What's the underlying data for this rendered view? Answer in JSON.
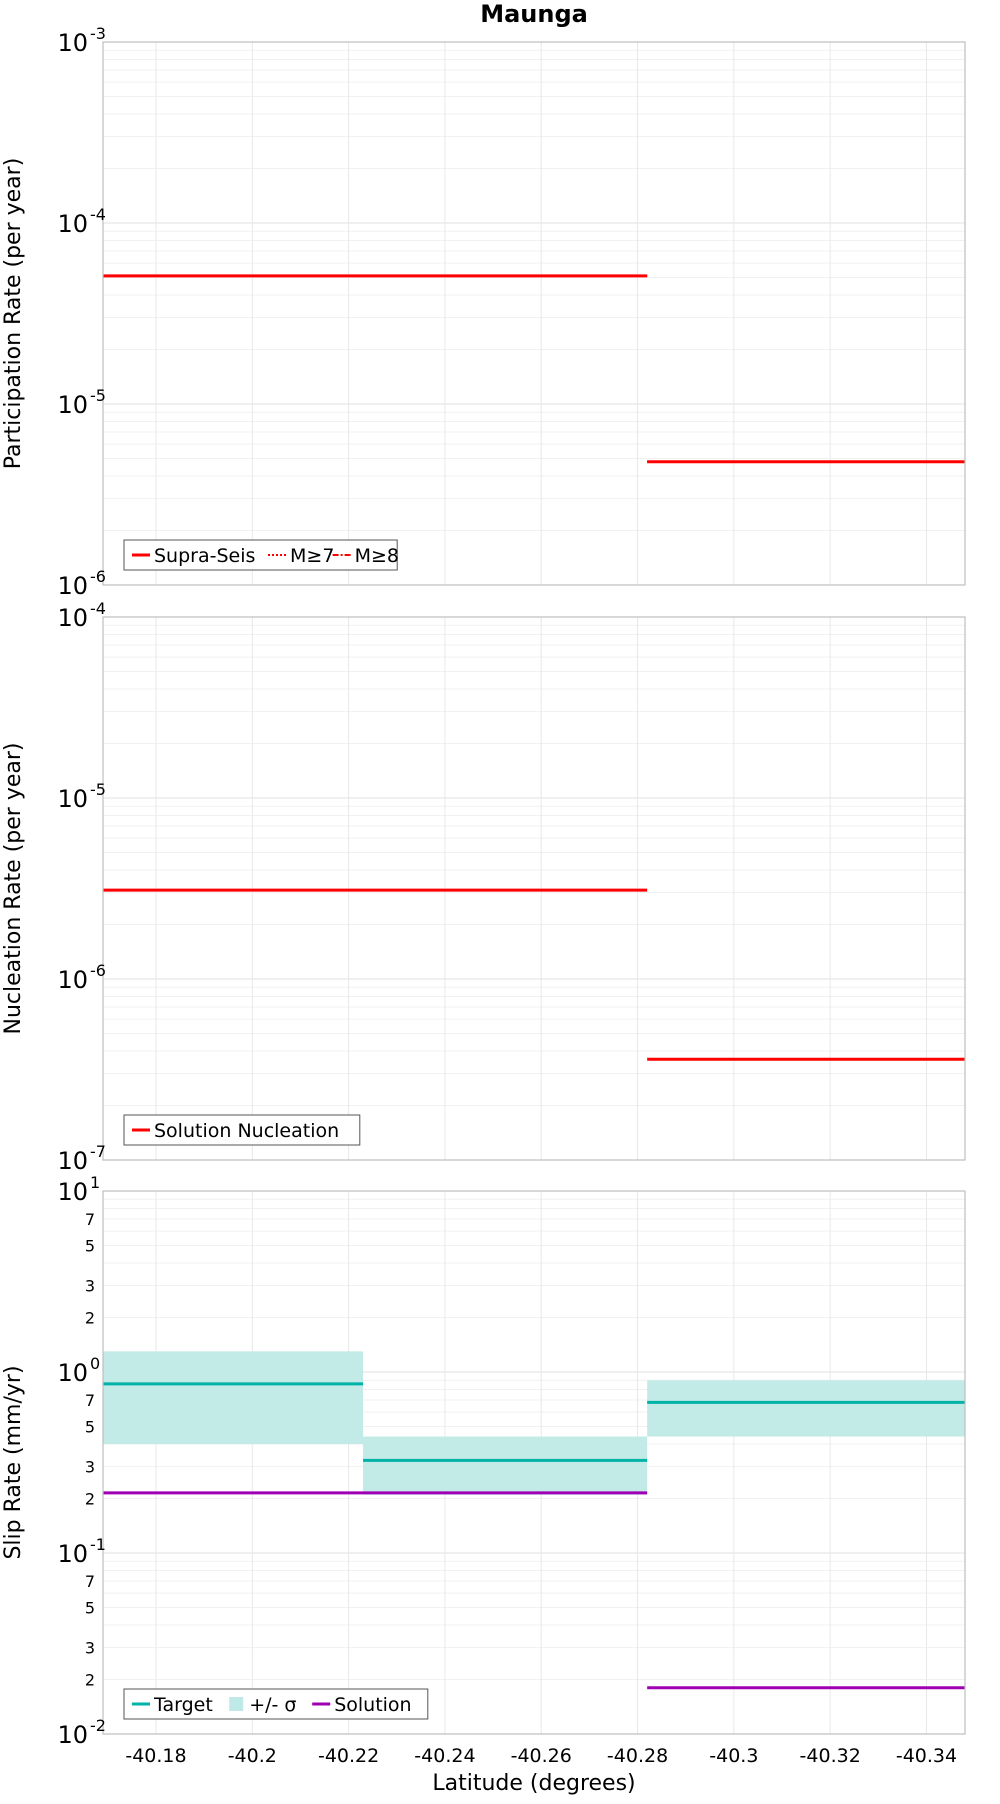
{
  "chart_data": [
    {
      "type": "line",
      "title": "Maunga",
      "xlabel": "",
      "ylabel": "Participation Rate (per year)",
      "y_scale": "log",
      "ylim": [
        1e-06,
        0.001
      ],
      "xlim": [
        -40.169,
        -40.348
      ],
      "x_axis": "reversed",
      "grid": true,
      "legend_position": "bottom-left",
      "y_tick_labels": [
        {
          "value": 0.001,
          "base": "10",
          "exp": "-3"
        },
        {
          "value": 0.0001,
          "base": "10",
          "exp": "-4"
        },
        {
          "value": 1e-05,
          "base": "10",
          "exp": "-5"
        },
        {
          "value": 1e-06,
          "base": "10",
          "exp": "-6"
        }
      ],
      "series": [
        {
          "name": "Supra-Seis",
          "color": "#ff0000",
          "style": "solid",
          "segments": [
            {
              "x": [
                -40.169,
                -40.282
              ],
              "y": 5.1e-05
            },
            {
              "x": [
                -40.282,
                -40.348
              ],
              "y": 4.8e-06
            }
          ]
        },
        {
          "name": "M≥7",
          "color": "#ff0000",
          "style": "dotted",
          "segments": [
            {
              "x": [
                -40.169,
                -40.282
              ],
              "y": 5.1e-05
            },
            {
              "x": [
                -40.282,
                -40.348
              ],
              "y": 4.8e-06
            }
          ]
        },
        {
          "name": "M≥8",
          "color": "#ff0000",
          "style": "dashdot",
          "segments": []
        }
      ]
    },
    {
      "type": "line",
      "title": "",
      "xlabel": "",
      "ylabel": "Nucleation Rate (per year)",
      "y_scale": "log",
      "ylim": [
        1e-07,
        0.0001
      ],
      "xlim": [
        -40.169,
        -40.348
      ],
      "x_axis": "reversed",
      "grid": true,
      "legend_position": "bottom-left",
      "y_tick_labels": [
        {
          "value": 0.0001,
          "base": "10",
          "exp": "-4"
        },
        {
          "value": 1e-05,
          "base": "10",
          "exp": "-5"
        },
        {
          "value": 1e-06,
          "base": "10",
          "exp": "-6"
        },
        {
          "value": 1e-07,
          "base": "10",
          "exp": "-7"
        }
      ],
      "series": [
        {
          "name": "Solution Nucleation",
          "color": "#ff0000",
          "style": "solid",
          "segments": [
            {
              "x": [
                -40.169,
                -40.282
              ],
              "y": 3.1e-06
            },
            {
              "x": [
                -40.282,
                -40.348
              ],
              "y": 3.6e-07
            }
          ]
        }
      ]
    },
    {
      "type": "line",
      "title": "",
      "xlabel": "Latitude (degrees)",
      "ylabel": "Slip Rate (mm/yr)",
      "y_scale": "log",
      "ylim": [
        0.01,
        10
      ],
      "xlim": [
        -40.169,
        -40.348
      ],
      "x_axis": "reversed",
      "grid": true,
      "legend_position": "bottom-left",
      "x_ticks": [
        -40.18,
        -40.2,
        -40.22,
        -40.24,
        -40.26,
        -40.28,
        -40.3,
        -40.32,
        -40.34
      ],
      "x_tick_labels": [
        "-40.18",
        "-40.2",
        "-40.22",
        "-40.24",
        "-40.26",
        "-40.28",
        "-40.3",
        "-40.32",
        "-40.34"
      ],
      "y_tick_labels": [
        {
          "value": 10,
          "base": "10",
          "exp": "1"
        },
        {
          "value": 1,
          "base": "10",
          "exp": "0"
        },
        {
          "value": 0.1,
          "base": "10",
          "exp": "-1"
        },
        {
          "value": 0.01,
          "base": "10",
          "exp": "-2"
        }
      ],
      "y_minor_labels": [
        {
          "value": 7,
          "label": "7"
        },
        {
          "value": 5,
          "label": "5"
        },
        {
          "value": 3,
          "label": "3"
        },
        {
          "value": 2,
          "label": "2"
        },
        {
          "value": 0.7,
          "label": "7"
        },
        {
          "value": 0.5,
          "label": "5"
        },
        {
          "value": 0.3,
          "label": "3"
        },
        {
          "value": 0.2,
          "label": "2"
        },
        {
          "value": 0.07,
          "label": "7"
        },
        {
          "value": 0.05,
          "label": "5"
        },
        {
          "value": 0.03,
          "label": "3"
        },
        {
          "value": 0.02,
          "label": "2"
        }
      ],
      "series": [
        {
          "name": "Target",
          "color": "#00b3a8",
          "style": "solid",
          "segments": [
            {
              "x": [
                -40.169,
                -40.223
              ],
              "y": 0.86
            },
            {
              "x": [
                -40.223,
                -40.282
              ],
              "y": 0.325
            },
            {
              "x": [
                -40.282,
                -40.348
              ],
              "y": 0.68
            }
          ]
        },
        {
          "name": "+/- σ",
          "color": "#bfe9e6",
          "style": "band",
          "segments": [
            {
              "x": [
                -40.169,
                -40.223
              ],
              "y_low": 0.4,
              "y_high": 1.3
            },
            {
              "x": [
                -40.223,
                -40.282
              ],
              "y_low": 0.21,
              "y_high": 0.44
            },
            {
              "x": [
                -40.282,
                -40.348
              ],
              "y_low": 0.44,
              "y_high": 0.9
            }
          ]
        },
        {
          "name": "Solution",
          "color": "#a000b3",
          "style": "solid",
          "segments": [
            {
              "x": [
                -40.169,
                -40.282
              ],
              "y": 0.215
            },
            {
              "x": [
                -40.282,
                -40.348
              ],
              "y": 0.018
            }
          ]
        }
      ]
    }
  ]
}
